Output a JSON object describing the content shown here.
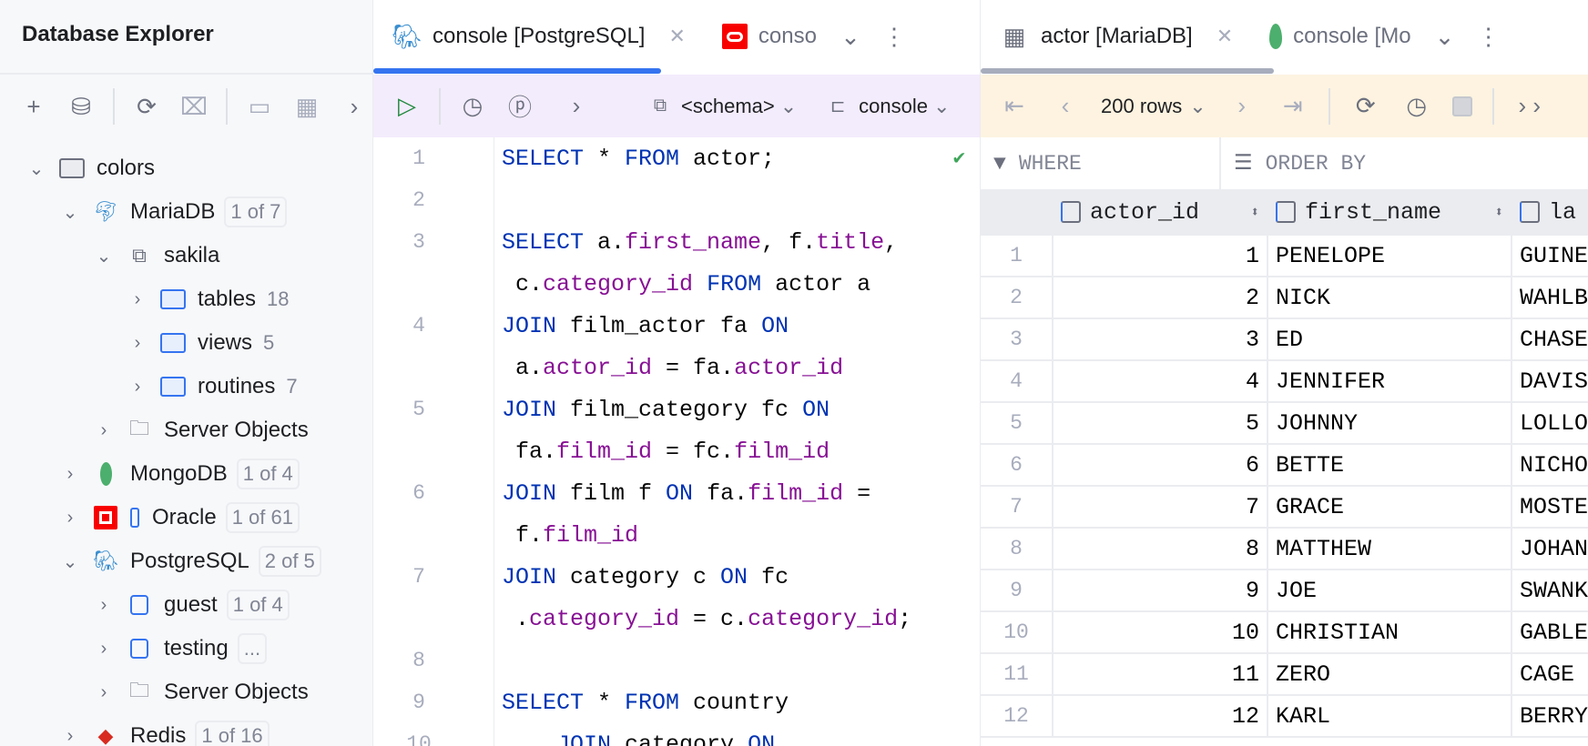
{
  "explorer": {
    "title": "Database Explorer",
    "toolbar": [
      "add-icon",
      "datasource-settings-icon",
      "refresh-icon",
      "disconnect-icon",
      "console-icon",
      "table-icon",
      "more-icon"
    ],
    "tree": [
      {
        "depth": 0,
        "chevron": "down",
        "icon": "folder-grey",
        "label": "colors"
      },
      {
        "depth": 1,
        "chevron": "down",
        "icon": "mariadb",
        "label": "MariaDB",
        "badge": "1 of 7"
      },
      {
        "depth": 2,
        "chevron": "down",
        "icon": "schema",
        "label": "sakila"
      },
      {
        "depth": 3,
        "chevron": "right",
        "icon": "folder",
        "label": "tables",
        "count": "18"
      },
      {
        "depth": 3,
        "chevron": "right",
        "icon": "folder",
        "label": "views",
        "count": "5"
      },
      {
        "depth": 3,
        "chevron": "right",
        "icon": "folder",
        "label": "routines",
        "count": "7"
      },
      {
        "depth": 2,
        "chevron": "right",
        "icon": "server",
        "label": "Server Objects"
      },
      {
        "depth": 1,
        "chevron": "right",
        "icon": "mongodb",
        "label": "MongoDB",
        "badge": "1 of 4"
      },
      {
        "depth": 1,
        "chevron": "right",
        "icon": "oracle",
        "label": "Oracle",
        "badge": "1 of 61"
      },
      {
        "depth": 1,
        "chevron": "down",
        "icon": "postgresql",
        "label": "PostgreSQL",
        "badge": "2 of 5"
      },
      {
        "depth": 2,
        "chevron": "right",
        "icon": "db-schema",
        "label": "guest",
        "badge": "1 of 4"
      },
      {
        "depth": 2,
        "chevron": "right",
        "icon": "db-schema",
        "label": "testing",
        "badge": "..."
      },
      {
        "depth": 2,
        "chevron": "right",
        "icon": "server",
        "label": "Server Objects"
      },
      {
        "depth": 1,
        "chevron": "right",
        "icon": "redis",
        "label": "Redis",
        "badge": "1 of 16"
      }
    ]
  },
  "editor": {
    "tabs": [
      {
        "label": "console [PostgreSQL]",
        "icon": "postgresql",
        "active": true
      },
      {
        "label": "conso",
        "icon": "oracle",
        "active": false
      }
    ],
    "toolbar": {
      "schema": "<schema>",
      "session": "console"
    },
    "accent": "#3574f0",
    "lines": [
      {
        "n": "1",
        "t": [
          [
            "kw",
            "SELECT"
          ],
          [
            "pl",
            " * "
          ],
          [
            "kw",
            "FROM"
          ],
          [
            "pl",
            " actor;"
          ]
        ],
        "ok": true
      },
      {
        "n": "2",
        "t": []
      },
      {
        "n": "3",
        "t": [
          [
            "kw",
            "SELECT"
          ],
          [
            "pl",
            " a."
          ],
          [
            "fd",
            "first_name"
          ],
          [
            "pl",
            ", f."
          ],
          [
            "fd",
            "title"
          ],
          [
            "pl",
            ","
          ]
        ]
      },
      {
        "n": "",
        "t": [
          [
            "pl",
            " c."
          ],
          [
            "fd",
            "category_id"
          ],
          [
            "pl",
            " "
          ],
          [
            "kw",
            "FROM"
          ],
          [
            "pl",
            " actor a"
          ]
        ]
      },
      {
        "n": "4",
        "t": [
          [
            "kw",
            "JOIN"
          ],
          [
            "pl",
            " film_actor fa "
          ],
          [
            "kw",
            "ON"
          ]
        ]
      },
      {
        "n": "",
        "t": [
          [
            "pl",
            " a."
          ],
          [
            "fd",
            "actor_id"
          ],
          [
            "pl",
            " = fa."
          ],
          [
            "fd",
            "actor_id"
          ]
        ]
      },
      {
        "n": "5",
        "t": [
          [
            "kw",
            "JOIN"
          ],
          [
            "pl",
            " film_category fc "
          ],
          [
            "kw",
            "ON"
          ]
        ]
      },
      {
        "n": "",
        "t": [
          [
            "pl",
            " fa."
          ],
          [
            "fd",
            "film_id"
          ],
          [
            "pl",
            " = fc."
          ],
          [
            "fd",
            "film_id"
          ]
        ]
      },
      {
        "n": "6",
        "t": [
          [
            "kw",
            "JOIN"
          ],
          [
            "pl",
            " film f "
          ],
          [
            "kw",
            "ON"
          ],
          [
            "pl",
            " fa."
          ],
          [
            "fd",
            "film_id"
          ],
          [
            "pl",
            " ="
          ]
        ]
      },
      {
        "n": "",
        "t": [
          [
            "pl",
            " f."
          ],
          [
            "fd",
            "film_id"
          ]
        ]
      },
      {
        "n": "7",
        "t": [
          [
            "kw",
            "JOIN"
          ],
          [
            "pl",
            " category c "
          ],
          [
            "kw",
            "ON"
          ],
          [
            "pl",
            " fc"
          ]
        ]
      },
      {
        "n": "",
        "t": [
          [
            "pl",
            " ."
          ],
          [
            "fd",
            "category_id"
          ],
          [
            "pl",
            " = c."
          ],
          [
            "fd",
            "category_id"
          ],
          [
            "pl",
            ";"
          ]
        ]
      },
      {
        "n": "8",
        "t": []
      },
      {
        "n": "9",
        "t": [
          [
            "kw",
            "SELECT"
          ],
          [
            "pl",
            " * "
          ],
          [
            "kw",
            "FROM"
          ],
          [
            "pl",
            " country"
          ]
        ]
      },
      {
        "n": "10",
        "t": [
          [
            "pl",
            "    "
          ],
          [
            "kw",
            "JOIN"
          ],
          [
            "pl",
            " category "
          ],
          [
            "kw",
            "ON"
          ]
        ]
      }
    ]
  },
  "results": {
    "tabs": [
      {
        "label": "actor [MariaDB]",
        "icon": "table",
        "active": true
      },
      {
        "label": "console [Mo",
        "icon": "mongodb",
        "active": false
      }
    ],
    "rows_label": "200 rows",
    "where": "WHERE",
    "order_by": "ORDER BY",
    "columns": [
      "actor_id",
      "first_name",
      "la"
    ],
    "rows": [
      [
        "1",
        "PENELOPE",
        "GUINE"
      ],
      [
        "2",
        "NICK",
        "WAHLB"
      ],
      [
        "3",
        "ED",
        "CHASE"
      ],
      [
        "4",
        "JENNIFER",
        "DAVIS"
      ],
      [
        "5",
        "JOHNNY",
        "LOLLO"
      ],
      [
        "6",
        "BETTE",
        "NICHO"
      ],
      [
        "7",
        "GRACE",
        "MOSTE"
      ],
      [
        "8",
        "MATTHEW",
        "JOHAN"
      ],
      [
        "9",
        "JOE",
        "SWANK"
      ],
      [
        "10",
        "CHRISTIAN",
        "GABLE"
      ],
      [
        "11",
        "ZERO",
        "CAGE"
      ],
      [
        "12",
        "KARL",
        "BERRY"
      ]
    ]
  }
}
